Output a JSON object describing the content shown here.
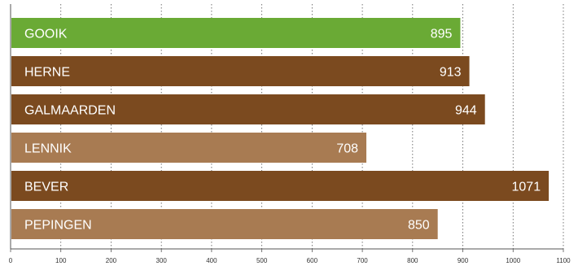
{
  "chart_data": {
    "type": "bar",
    "orientation": "horizontal",
    "categories": [
      "GOOIK",
      "HERNE",
      "GALMAARDEN",
      "LENNIK",
      "BEVER",
      "PEPINGEN"
    ],
    "values": [
      895,
      913,
      944,
      708,
      1071,
      850
    ],
    "colors": [
      "#6aaa35",
      "#7b4a1f",
      "#7b4a1f",
      "#a87b52",
      "#7b4a1f",
      "#a87b52"
    ],
    "xlim": [
      0,
      1100
    ],
    "xticks": [
      "0",
      "100",
      "200",
      "300",
      "400",
      "500",
      "600",
      "700",
      "800",
      "900",
      "1000",
      "1100"
    ],
    "grid": true,
    "title": "",
    "xlabel": "",
    "ylabel": ""
  }
}
